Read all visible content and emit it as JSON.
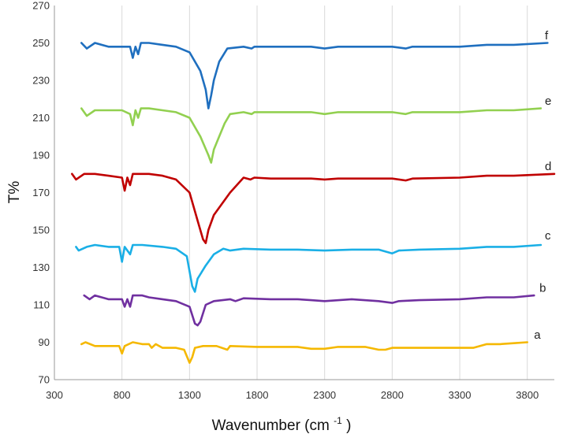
{
  "chart_data": {
    "type": "line",
    "title": "",
    "xlabel": "Wavenumber (cm -1)",
    "xlabel_main": "Wavenumber (cm",
    "xlabel_sup": "-1",
    "xlabel_close": ")",
    "ylabel": "T%",
    "xlim": [
      300,
      4000
    ],
    "ylim": [
      70,
      270
    ],
    "xticks": [
      300,
      800,
      1300,
      1800,
      2300,
      2800,
      3300,
      3800
    ],
    "yticks": [
      70,
      90,
      110,
      130,
      150,
      170,
      190,
      210,
      230,
      250,
      270
    ],
    "xtick_labels": [
      "300",
      "800",
      "1300",
      "1800",
      "2300",
      "2800",
      "3300",
      "3800"
    ],
    "ytick_labels": [
      "70",
      "90",
      "110",
      "130",
      "150",
      "170",
      "190",
      "210",
      "230",
      "250",
      "270"
    ],
    "grid": "vertical",
    "series": [
      {
        "name": "a",
        "label": "a",
        "color": "#F5B800",
        "label_at": [
          3850,
          92
        ],
        "points": [
          [
            500,
            89
          ],
          [
            530,
            90
          ],
          [
            600,
            88
          ],
          [
            700,
            88
          ],
          [
            780,
            88
          ],
          [
            800,
            84
          ],
          [
            820,
            88
          ],
          [
            880,
            90
          ],
          [
            950,
            89
          ],
          [
            1000,
            89
          ],
          [
            1020,
            87
          ],
          [
            1050,
            89
          ],
          [
            1100,
            87
          ],
          [
            1200,
            87
          ],
          [
            1260,
            86
          ],
          [
            1300,
            79
          ],
          [
            1320,
            82
          ],
          [
            1340,
            87
          ],
          [
            1400,
            88
          ],
          [
            1500,
            88
          ],
          [
            1580,
            86
          ],
          [
            1600,
            88
          ],
          [
            1800,
            87.5
          ],
          [
            2100,
            87.5
          ],
          [
            2200,
            86.5
          ],
          [
            2300,
            86.5
          ],
          [
            2400,
            87.5
          ],
          [
            2600,
            87.5
          ],
          [
            2700,
            86
          ],
          [
            2750,
            86
          ],
          [
            2800,
            87
          ],
          [
            3000,
            87
          ],
          [
            3400,
            87
          ],
          [
            3500,
            89
          ],
          [
            3600,
            89
          ],
          [
            3700,
            89.5
          ],
          [
            3800,
            90
          ]
        ]
      },
      {
        "name": "b",
        "label": "b",
        "color": "#7030A0",
        "label_at": [
          3890,
          117
        ],
        "points": [
          [
            520,
            115
          ],
          [
            560,
            113
          ],
          [
            600,
            115
          ],
          [
            700,
            113
          ],
          [
            800,
            113
          ],
          [
            820,
            109
          ],
          [
            840,
            113
          ],
          [
            860,
            109
          ],
          [
            880,
            115
          ],
          [
            950,
            115
          ],
          [
            1000,
            114
          ],
          [
            1100,
            113
          ],
          [
            1200,
            112
          ],
          [
            1300,
            109
          ],
          [
            1340,
            100
          ],
          [
            1360,
            99
          ],
          [
            1380,
            101
          ],
          [
            1420,
            110
          ],
          [
            1480,
            112
          ],
          [
            1600,
            113
          ],
          [
            1640,
            112
          ],
          [
            1700,
            113.5
          ],
          [
            1900,
            113
          ],
          [
            2100,
            113
          ],
          [
            2200,
            112.5
          ],
          [
            2300,
            112
          ],
          [
            2500,
            113
          ],
          [
            2700,
            112
          ],
          [
            2800,
            111
          ],
          [
            2850,
            112
          ],
          [
            3000,
            112.5
          ],
          [
            3300,
            113
          ],
          [
            3500,
            114
          ],
          [
            3700,
            114
          ],
          [
            3850,
            115
          ]
        ]
      },
      {
        "name": "c",
        "label": "c",
        "color": "#1AAFE6",
        "label_at": [
          3930,
          145
        ],
        "points": [
          [
            460,
            141
          ],
          [
            480,
            139
          ],
          [
            540,
            141
          ],
          [
            600,
            142
          ],
          [
            700,
            141
          ],
          [
            780,
            141
          ],
          [
            800,
            133
          ],
          [
            820,
            141
          ],
          [
            860,
            137
          ],
          [
            880,
            142
          ],
          [
            950,
            142
          ],
          [
            1100,
            141
          ],
          [
            1200,
            140
          ],
          [
            1280,
            136
          ],
          [
            1320,
            120
          ],
          [
            1340,
            117
          ],
          [
            1360,
            124
          ],
          [
            1420,
            131
          ],
          [
            1480,
            137
          ],
          [
            1550,
            140
          ],
          [
            1600,
            139
          ],
          [
            1700,
            140
          ],
          [
            1900,
            139.5
          ],
          [
            2100,
            139.5
          ],
          [
            2300,
            139
          ],
          [
            2500,
            139.5
          ],
          [
            2700,
            139.5
          ],
          [
            2800,
            137.5
          ],
          [
            2850,
            139
          ],
          [
            3000,
            139.5
          ],
          [
            3300,
            140
          ],
          [
            3500,
            141
          ],
          [
            3700,
            141
          ],
          [
            3900,
            142
          ]
        ]
      },
      {
        "name": "d",
        "label": "d",
        "color": "#C00000",
        "label_at": [
          3930,
          182
        ],
        "points": [
          [
            430,
            180
          ],
          [
            460,
            177
          ],
          [
            520,
            180
          ],
          [
            600,
            180
          ],
          [
            700,
            179
          ],
          [
            800,
            178
          ],
          [
            820,
            171
          ],
          [
            840,
            178
          ],
          [
            860,
            174
          ],
          [
            880,
            180
          ],
          [
            950,
            180
          ],
          [
            1000,
            180
          ],
          [
            1100,
            179
          ],
          [
            1200,
            177
          ],
          [
            1300,
            170
          ],
          [
            1360,
            155
          ],
          [
            1400,
            145
          ],
          [
            1420,
            143
          ],
          [
            1440,
            150
          ],
          [
            1480,
            158
          ],
          [
            1550,
            165
          ],
          [
            1600,
            170
          ],
          [
            1700,
            178
          ],
          [
            1750,
            177
          ],
          [
            1780,
            178
          ],
          [
            1900,
            177.5
          ],
          [
            2200,
            177.5
          ],
          [
            2300,
            177
          ],
          [
            2400,
            177.5
          ],
          [
            2800,
            177.5
          ],
          [
            2900,
            176.5
          ],
          [
            2950,
            177.5
          ],
          [
            3300,
            178
          ],
          [
            3500,
            179
          ],
          [
            3700,
            179
          ],
          [
            4000,
            180
          ]
        ]
      },
      {
        "name": "e",
        "label": "e",
        "color": "#92D050",
        "label_at": [
          3930,
          217
        ],
        "points": [
          [
            500,
            215
          ],
          [
            540,
            211
          ],
          [
            600,
            214
          ],
          [
            700,
            214
          ],
          [
            800,
            214
          ],
          [
            860,
            212
          ],
          [
            880,
            206
          ],
          [
            900,
            214
          ],
          [
            920,
            210
          ],
          [
            940,
            215
          ],
          [
            1000,
            215
          ],
          [
            1100,
            214
          ],
          [
            1200,
            213
          ],
          [
            1300,
            210
          ],
          [
            1380,
            200
          ],
          [
            1440,
            190
          ],
          [
            1460,
            186
          ],
          [
            1480,
            193
          ],
          [
            1520,
            200
          ],
          [
            1560,
            207
          ],
          [
            1600,
            212
          ],
          [
            1700,
            213
          ],
          [
            1760,
            212
          ],
          [
            1780,
            213
          ],
          [
            1900,
            213
          ],
          [
            2200,
            213
          ],
          [
            2300,
            212
          ],
          [
            2400,
            213
          ],
          [
            2800,
            213
          ],
          [
            2900,
            212
          ],
          [
            2950,
            213
          ],
          [
            3300,
            213
          ],
          [
            3500,
            214
          ],
          [
            3700,
            214
          ],
          [
            3900,
            215
          ]
        ]
      },
      {
        "name": "f",
        "label": "f",
        "color": "#1F6FBF",
        "label_at": [
          3930,
          252
        ],
        "points": [
          [
            500,
            250
          ],
          [
            540,
            247
          ],
          [
            600,
            250
          ],
          [
            700,
            248
          ],
          [
            800,
            248
          ],
          [
            860,
            248
          ],
          [
            880,
            242
          ],
          [
            900,
            248
          ],
          [
            920,
            244
          ],
          [
            940,
            250
          ],
          [
            1000,
            250
          ],
          [
            1100,
            249
          ],
          [
            1200,
            248
          ],
          [
            1300,
            245
          ],
          [
            1380,
            235
          ],
          [
            1420,
            225
          ],
          [
            1440,
            215
          ],
          [
            1460,
            222
          ],
          [
            1480,
            230
          ],
          [
            1520,
            240
          ],
          [
            1580,
            247
          ],
          [
            1700,
            248
          ],
          [
            1760,
            247
          ],
          [
            1780,
            248
          ],
          [
            1900,
            248
          ],
          [
            2200,
            248
          ],
          [
            2300,
            247
          ],
          [
            2400,
            248
          ],
          [
            2800,
            248
          ],
          [
            2900,
            247
          ],
          [
            2950,
            248
          ],
          [
            3300,
            248
          ],
          [
            3500,
            249
          ],
          [
            3700,
            249
          ],
          [
            3950,
            250
          ]
        ]
      }
    ]
  }
}
